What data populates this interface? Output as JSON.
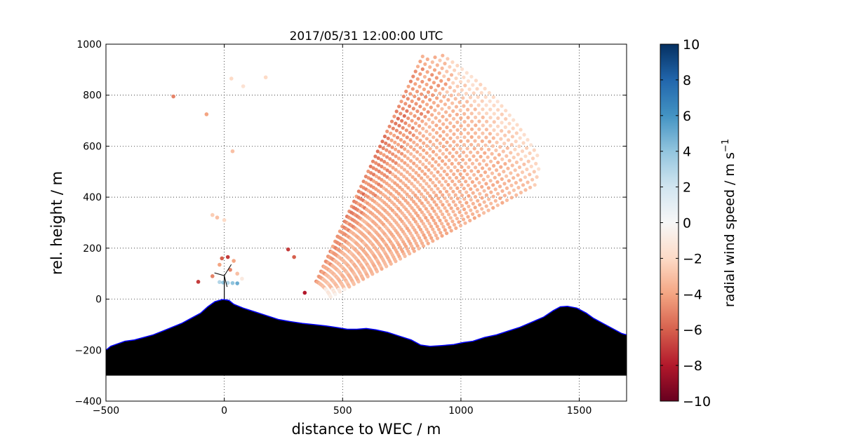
{
  "chart_data": {
    "type": "scatter",
    "title": "2017/05/31 12:00:00 UTC",
    "xlabel": "distance to WEC / m",
    "ylabel": "rel. height / m",
    "xlim": [
      -500,
      1700
    ],
    "ylim": [
      -400,
      1000
    ],
    "xticks": [
      -500,
      0,
      500,
      1000,
      1500
    ],
    "yticks": [
      -400,
      -200,
      0,
      200,
      400,
      600,
      800,
      1000
    ],
    "grid": true,
    "colorbar": {
      "label": "radial wind speed / m s",
      "label_superscript": "−1",
      "range": [
        -10,
        10
      ],
      "ticks": [
        10,
        8,
        6,
        4,
        2,
        0,
        -2,
        -4,
        -6,
        -8,
        -10
      ],
      "tick_labels": [
        "10",
        "8",
        "6",
        "4",
        "2",
        "0",
        "−2",
        "−4",
        "−6",
        "−8",
        "−10"
      ],
      "colormap": "RdBu"
    },
    "scan": {
      "origin": [
        325,
        -55
      ],
      "range_gates_m": [
        140,
        1180
      ],
      "elevation_deg": [
        26,
        63
      ],
      "typical_speed": -3
    },
    "terrain": {
      "profile": [
        [
          -500,
          -200
        ],
        [
          -480,
          -185
        ],
        [
          -450,
          -175
        ],
        [
          -420,
          -165
        ],
        [
          -380,
          -160
        ],
        [
          -340,
          -150
        ],
        [
          -300,
          -140
        ],
        [
          -260,
          -125
        ],
        [
          -220,
          -110
        ],
        [
          -180,
          -95
        ],
        [
          -140,
          -75
        ],
        [
          -100,
          -55
        ],
        [
          -70,
          -30
        ],
        [
          -40,
          -10
        ],
        [
          -10,
          -2
        ],
        [
          0,
          -2
        ],
        [
          20,
          -5
        ],
        [
          40,
          -20
        ],
        [
          80,
          -35
        ],
        [
          130,
          -50
        ],
        [
          180,
          -65
        ],
        [
          230,
          -80
        ],
        [
          280,
          -88
        ],
        [
          330,
          -95
        ],
        [
          380,
          -100
        ],
        [
          430,
          -105
        ],
        [
          480,
          -112
        ],
        [
          520,
          -118
        ],
        [
          560,
          -118
        ],
        [
          600,
          -115
        ],
        [
          640,
          -120
        ],
        [
          690,
          -130
        ],
        [
          740,
          -145
        ],
        [
          790,
          -160
        ],
        [
          830,
          -180
        ],
        [
          870,
          -185
        ],
        [
          920,
          -182
        ],
        [
          970,
          -178
        ],
        [
          1010,
          -170
        ],
        [
          1050,
          -165
        ],
        [
          1100,
          -150
        ],
        [
          1150,
          -140
        ],
        [
          1200,
          -125
        ],
        [
          1250,
          -110
        ],
        [
          1300,
          -90
        ],
        [
          1350,
          -70
        ],
        [
          1390,
          -45
        ],
        [
          1420,
          -30
        ],
        [
          1450,
          -28
        ],
        [
          1490,
          -35
        ],
        [
          1530,
          -55
        ],
        [
          1560,
          -75
        ],
        [
          1600,
          -95
        ],
        [
          1640,
          -115
        ],
        [
          1680,
          -135
        ],
        [
          1700,
          -140
        ]
      ],
      "base": -300,
      "fill_color": "#000000",
      "outline_color": "#0000ff"
    },
    "outliers": [
      {
        "x": -215,
        "y": 795,
        "v": -5
      },
      {
        "x": -75,
        "y": 725,
        "v": -4
      },
      {
        "x": 35,
        "y": 580,
        "v": -3
      },
      {
        "x": 30,
        "y": 865,
        "v": -2
      },
      {
        "x": 80,
        "y": 835,
        "v": -1.5
      },
      {
        "x": 175,
        "y": 870,
        "v": -2
      },
      {
        "x": -50,
        "y": 330,
        "v": -2.5
      },
      {
        "x": -30,
        "y": 320,
        "v": -3
      },
      {
        "x": 0,
        "y": 310,
        "v": -2
      },
      {
        "x": -110,
        "y": 68,
        "v": -7
      },
      {
        "x": -50,
        "y": 90,
        "v": -5
      },
      {
        "x": -20,
        "y": 135,
        "v": -4
      },
      {
        "x": -10,
        "y": 160,
        "v": -6
      },
      {
        "x": 15,
        "y": 165,
        "v": -7
      },
      {
        "x": 25,
        "y": 115,
        "v": -5
      },
      {
        "x": 40,
        "y": 150,
        "v": -4
      },
      {
        "x": 55,
        "y": 100,
        "v": -3
      },
      {
        "x": 75,
        "y": 80,
        "v": -1
      },
      {
        "x": -20,
        "y": 67,
        "v": 3
      },
      {
        "x": -5,
        "y": 65,
        "v": 4
      },
      {
        "x": 15,
        "y": 64,
        "v": 3
      },
      {
        "x": 35,
        "y": 63,
        "v": 4
      },
      {
        "x": 55,
        "y": 62,
        "v": 5
      },
      {
        "x": 340,
        "y": 25,
        "v": -8
      },
      {
        "x": 270,
        "y": 195,
        "v": -7
      },
      {
        "x": 295,
        "y": 165,
        "v": -6
      }
    ]
  }
}
